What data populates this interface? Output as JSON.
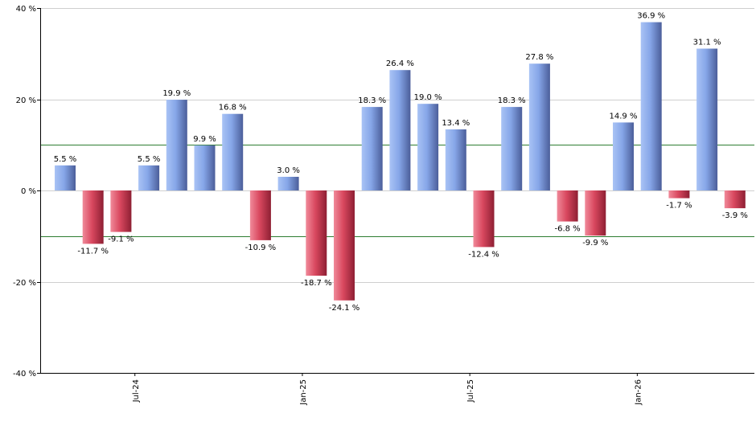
{
  "chart_data": {
    "type": "bar",
    "title": "",
    "xlabel": "",
    "ylabel": "",
    "ylim": [
      -40,
      40
    ],
    "yticks": [
      -40,
      -20,
      0,
      20,
      40
    ],
    "ytick_suffix": " %",
    "grid": true,
    "reference_lines": [
      10,
      -10
    ],
    "reference_line_color": "#2e7d32",
    "positive_color": "#7ea0e6",
    "negative_color": "#d9485f",
    "x_tick_labels": [
      {
        "label": "Jul-24",
        "index": 2.5
      },
      {
        "label": "Jan-25",
        "index": 8.5
      },
      {
        "label": "Jul-25",
        "index": 14.5
      },
      {
        "label": "Jan-26",
        "index": 20.5
      }
    ],
    "values": [
      5.5,
      -11.7,
      -9.1,
      5.5,
      19.9,
      9.9,
      16.8,
      -10.9,
      3.0,
      -18.7,
      -24.1,
      18.3,
      26.4,
      19.0,
      13.4,
      -12.4,
      18.3,
      27.8,
      -6.8,
      -9.9,
      14.9,
      36.9,
      -1.7,
      31.1,
      -3.9
    ],
    "data_labels": [
      "5.5 %",
      "-11.7 %",
      "-9.1 %",
      "5.5 %",
      "19.9 %",
      "9.9 %",
      "16.8 %",
      "-10.9 %",
      "3.0 %",
      "-18.7 %",
      "-24.1 %",
      "18.3 %",
      "26.4 %",
      "19.0 %",
      "13.4 %",
      "-12.4 %",
      "18.3 %",
      "27.8 %",
      "-6.8 %",
      "-9.9 %",
      "14.9 %",
      "36.9 %",
      "-1.7 %",
      "31.1 %",
      "-3.9 %"
    ]
  }
}
